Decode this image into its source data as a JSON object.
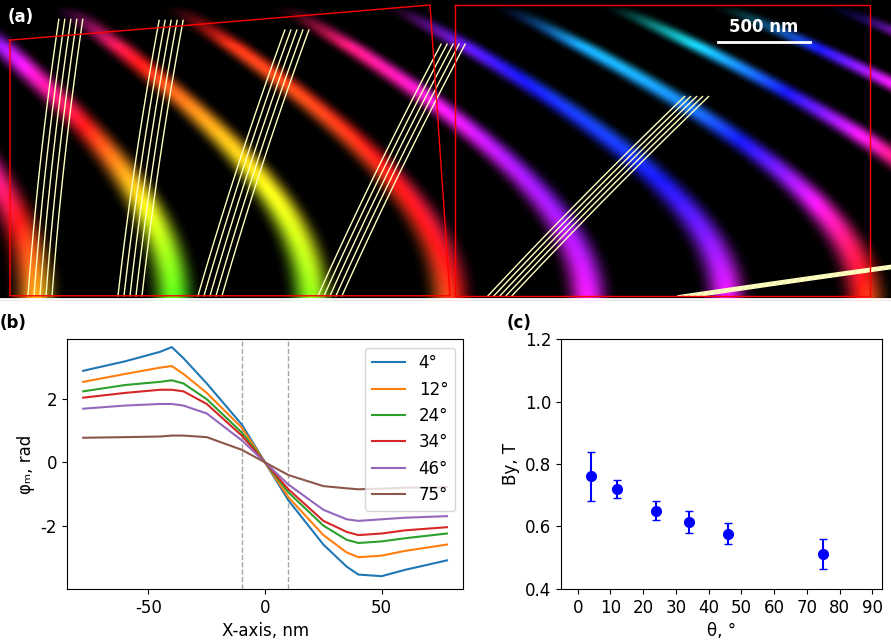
{
  "chart_data": [
    {
      "type": "image",
      "title": "(a)",
      "annotations": [
        "500 nm"
      ]
    },
    {
      "type": "line",
      "title": "(b)",
      "x_label": "X-axis, nm",
      "y_label": "φₘ, rad",
      "x": [
        -78,
        -60,
        -45,
        -40,
        -35,
        -25,
        -10,
        0,
        10,
        25,
        35,
        40,
        50,
        60,
        78
      ],
      "series": [
        {
          "name": "4°",
          "color": "#1f77b4",
          "values": [
            2.9,
            3.2,
            3.5,
            3.65,
            3.3,
            2.5,
            1.2,
            0,
            -1.2,
            -2.6,
            -3.3,
            -3.55,
            -3.6,
            -3.4,
            -3.1
          ]
        },
        {
          "name": "12°",
          "color": "#ff7f0e",
          "values": [
            2.55,
            2.8,
            3.0,
            3.05,
            2.8,
            2.2,
            1.1,
            0,
            -1.1,
            -2.3,
            -2.85,
            -3.0,
            -2.95,
            -2.8,
            -2.6
          ]
        },
        {
          "name": "24°",
          "color": "#2ca02c",
          "values": [
            2.25,
            2.45,
            2.55,
            2.6,
            2.5,
            2.0,
            0.95,
            0,
            -0.95,
            -2.0,
            -2.45,
            -2.55,
            -2.5,
            -2.4,
            -2.25
          ]
        },
        {
          "name": "34°",
          "color": "#d62728",
          "values": [
            2.05,
            2.2,
            2.3,
            2.3,
            2.25,
            1.85,
            0.85,
            0,
            -0.85,
            -1.85,
            -2.2,
            -2.3,
            -2.25,
            -2.15,
            -2.05
          ]
        },
        {
          "name": "46°",
          "color": "#9467bd",
          "values": [
            1.7,
            1.8,
            1.85,
            1.85,
            1.8,
            1.55,
            0.7,
            0,
            -0.7,
            -1.5,
            -1.8,
            -1.85,
            -1.8,
            -1.75,
            -1.7
          ]
        },
        {
          "name": "75°",
          "color": "#8c564b",
          "values": [
            0.78,
            0.8,
            0.82,
            0.85,
            0.85,
            0.8,
            0.4,
            0,
            -0.4,
            -0.75,
            -0.82,
            -0.85,
            -0.83,
            -0.8,
            -0.78
          ]
        }
      ],
      "reference_lines": [
        -10,
        10
      ],
      "xlim": [
        -85,
        85
      ],
      "xticks": [
        -50,
        0,
        50
      ],
      "ylim": [
        -4.0,
        3.9
      ],
      "yticks": [
        -2,
        0,
        2
      ],
      "legend": "upper right",
      "grid": false
    },
    {
      "type": "scatter",
      "title": "(c)",
      "x_label": "θ, °",
      "y_label": "B̄y, T",
      "x": [
        4,
        12,
        24,
        34,
        46,
        75
      ],
      "values": [
        0.76,
        0.72,
        0.65,
        0.615,
        0.577,
        0.512
      ],
      "errors": [
        0.08,
        0.03,
        0.03,
        0.035,
        0.035,
        0.048
      ],
      "color": "#0000ff",
      "marker": "o",
      "xlim": [
        -5,
        93
      ],
      "xticks": [
        0,
        10,
        20,
        30,
        40,
        50,
        60,
        70,
        80,
        90
      ],
      "ylim": [
        0.4,
        1.2
      ],
      "yticks": [
        0.4,
        0.6,
        0.8,
        {
          "value": 1.0,
          "label": "1.0"
        },
        1.2
      ],
      "grid": false
    }
  ]
}
